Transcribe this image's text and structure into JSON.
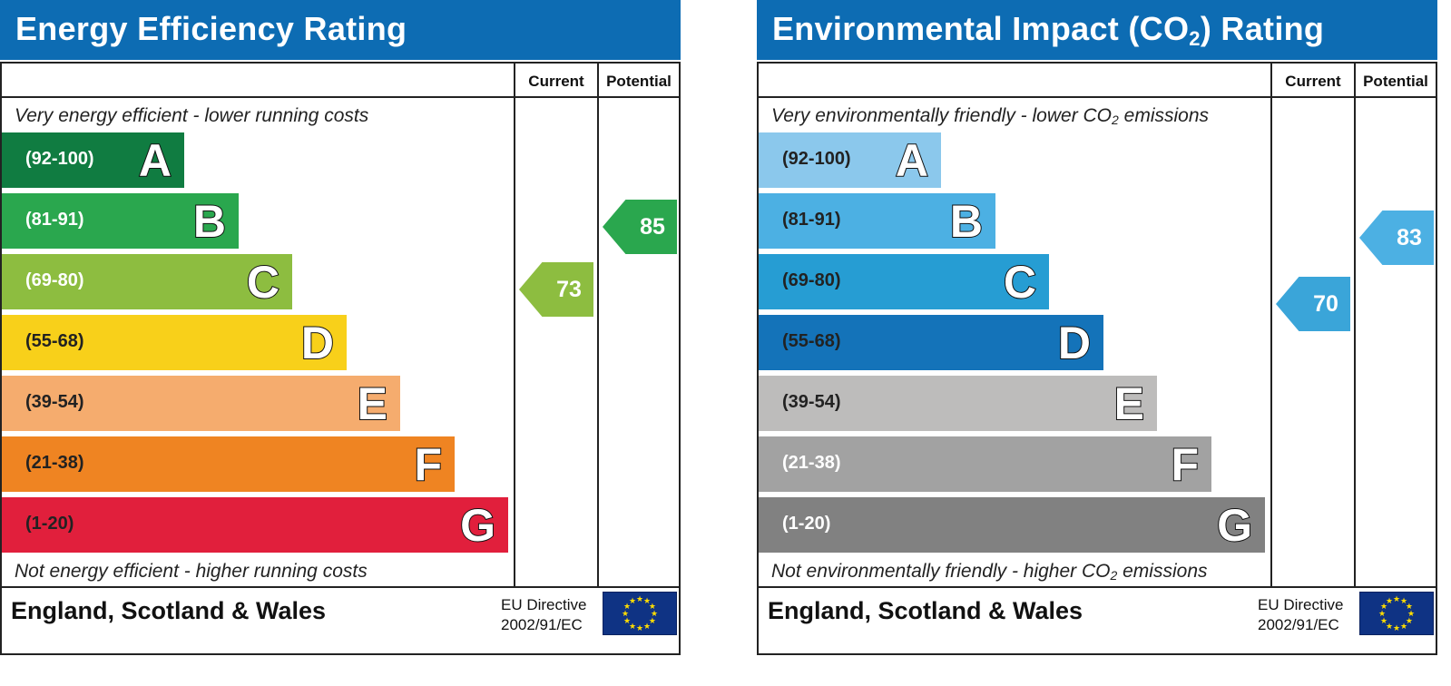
{
  "chart_data": [
    {
      "type": "bar",
      "title": "Energy Efficiency Rating",
      "top_note": "Very energy efficient - lower running costs",
      "bottom_note": "Not energy efficient - higher running costs",
      "columns": [
        "Current",
        "Potential"
      ],
      "bands": [
        {
          "range": "(92-100)",
          "letter": "A",
          "color": "#107c41",
          "text_color": "#ffffff"
        },
        {
          "range": "(81-91)",
          "letter": "B",
          "color": "#2aa74e",
          "text_color": "#ffffff"
        },
        {
          "range": "(69-80)",
          "letter": "C",
          "color": "#8dbd40",
          "text_color": "#ffffff"
        },
        {
          "range": "(55-68)",
          "letter": "D",
          "color": "#f8d01a",
          "text_color": "#222222"
        },
        {
          "range": "(39-54)",
          "letter": "E",
          "color": "#f5ac6e",
          "text_color": "#222222"
        },
        {
          "range": "(21-38)",
          "letter": "F",
          "color": "#ef8422",
          "text_color": "#222222"
        },
        {
          "range": "(1-20)",
          "letter": "G",
          "color": "#e11f3c",
          "text_color": "#222222"
        }
      ],
      "current": {
        "value": 73,
        "color": "#8dbd40"
      },
      "potential": {
        "value": 85,
        "color": "#2aa74e"
      },
      "footer": {
        "region": "England, Scotland & Wales",
        "directive_line1": "EU Directive",
        "directive_line2": "2002/91/EC"
      }
    },
    {
      "type": "bar",
      "title": "Environmental Impact (CO2) Rating",
      "top_note": "Very environmentally friendly - lower CO2 emissions",
      "bottom_note": "Not environmentally friendly - higher CO2 emissions",
      "columns": [
        "Current",
        "Potential"
      ],
      "bands": [
        {
          "range": "(92-100)",
          "letter": "A",
          "color": "#8bc8ec",
          "text_color": "#222222"
        },
        {
          "range": "(81-91)",
          "letter": "B",
          "color": "#4cb0e3",
          "text_color": "#222222"
        },
        {
          "range": "(69-80)",
          "letter": "C",
          "color": "#269dd3",
          "text_color": "#222222"
        },
        {
          "range": "(55-68)",
          "letter": "D",
          "color": "#1473b9",
          "text_color": "#222222"
        },
        {
          "range": "(39-54)",
          "letter": "E",
          "color": "#bdbcbb",
          "text_color": "#222222"
        },
        {
          "range": "(21-38)",
          "letter": "F",
          "color": "#a2a2a2",
          "text_color": "#ffffff"
        },
        {
          "range": "(1-20)",
          "letter": "G",
          "color": "#818181",
          "text_color": "#ffffff"
        }
      ],
      "current": {
        "value": 70,
        "color": "#3aa5d9"
      },
      "potential": {
        "value": 83,
        "color": "#4cb0e3"
      },
      "footer": {
        "region": "England, Scotland & Wales",
        "directive_line1": "EU Directive",
        "directive_line2": "2002/91/EC"
      }
    }
  ]
}
